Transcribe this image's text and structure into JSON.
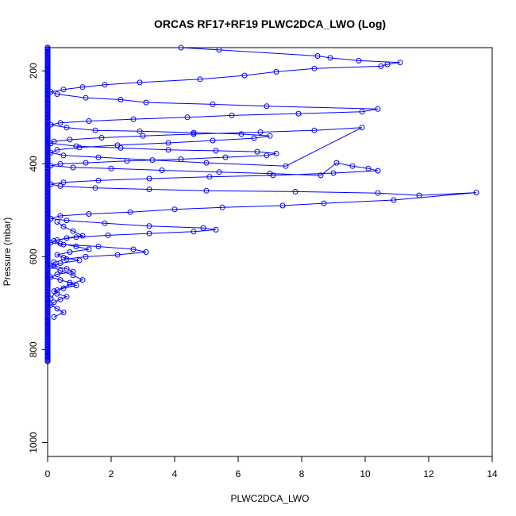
{
  "chart_data": {
    "type": "line",
    "title": "ORCAS RF17+RF19 PLWC2DCA_LWO (Log)",
    "xlabel": "PLWC2DCA_LWO",
    "ylabel": "Pressure (mbar)",
    "xlim": [
      0,
      14
    ],
    "ylim": [
      1030,
      150
    ],
    "y_inverted": true,
    "grid": false,
    "legend": "none",
    "x_ticks": [
      0,
      2,
      4,
      6,
      8,
      10,
      12,
      14
    ],
    "y_ticks": [
      200,
      400,
      600,
      800,
      1000
    ],
    "marker": "open-circle",
    "color": "#0000ff",
    "series": [
      {
        "x": [
          4.2,
          5.4,
          8.5,
          8.9,
          9.8,
          11.1,
          10.7,
          10.5,
          8.4,
          7.2,
          6.2,
          4.8,
          2.9,
          1.8,
          1.1,
          0.5,
          0.1,
          0.3,
          1.2,
          2.3,
          3.1,
          5.2,
          6.9,
          10.4,
          9.9,
          7.9,
          5.8,
          4.4,
          2.7,
          1.3,
          0.4,
          0.1,
          0.6,
          1.5,
          2.9,
          4.6,
          6.1,
          7.0,
          6.5,
          5.2,
          3.8,
          2.2,
          1.0,
          0.3,
          0.1,
          0.5,
          1.6,
          3.3,
          5.0,
          7.5,
          9.9,
          8.4,
          6.7,
          4.6,
          3.0,
          1.7,
          0.7,
          0.2,
          0.1,
          0.9,
          2.3,
          3.8,
          5.3,
          6.6,
          7.2,
          6.9,
          5.6,
          4.2,
          2.5,
          1.2,
          0.4,
          0.1,
          0.8,
          2.0,
          3.6,
          5.4,
          7.0,
          8.6,
          9.1,
          9.6,
          10.1,
          10.4,
          9.0,
          7.1,
          5.1,
          3.2,
          1.6,
          0.5,
          0.1,
          0.4,
          1.5,
          3.2,
          5.0,
          7.8,
          10.4,
          11.7,
          13.5,
          10.9,
          8.7,
          7.4,
          5.5,
          4.0,
          2.6,
          1.3,
          0.4,
          0.1,
          0.6,
          1.8,
          3.2,
          4.9,
          5.3,
          4.6,
          3.2,
          1.9,
          0.9,
          0.3,
          0.1,
          0.5,
          1.6,
          2.7,
          3.1,
          2.2,
          1.2,
          0.6,
          0.2,
          0.1,
          0.4,
          0.8,
          1.1,
          0.7,
          0.3,
          0.1
        ],
        "y": [
          150,
          155,
          168,
          172,
          178,
          182,
          186,
          190,
          195,
          202,
          210,
          218,
          225,
          230,
          235,
          240,
          245,
          250,
          258,
          262,
          268,
          272,
          276,
          282,
          288,
          292,
          296,
          300,
          304,
          308,
          312,
          316,
          322,
          328,
          330,
          333,
          336,
          340,
          345,
          350,
          355,
          360,
          365,
          370,
          376,
          382,
          386,
          392,
          398,
          405,
          322,
          328,
          332,
          336,
          340,
          344,
          348,
          352,
          356,
          362,
          366,
          370,
          372,
          374,
          378,
          382,
          386,
          390,
          394,
          398,
          400,
          404,
          408,
          410,
          414,
          418,
          421,
          425,
          398,
          405,
          410,
          415,
          420,
          425,
          428,
          432,
          436,
          440,
          444,
          448,
          452,
          455,
          458,
          460,
          463,
          468,
          462,
          478,
          485,
          490,
          494,
          498,
          504,
          508,
          512,
          518,
          522,
          528,
          534,
          538,
          542,
          546,
          550,
          554,
          558,
          564,
          570,
          574,
          578,
          584,
          590,
          596,
          600,
          605,
          612,
          620,
          630,
          640,
          650,
          660,
          672,
          690
        ]
      },
      {
        "x": [
          0.3,
          0.5,
          0.8,
          1.1,
          0.6,
          0.2,
          0.4,
          0.9,
          1.3,
          0.7,
          0.3,
          0.5,
          1.0,
          0.4,
          0.2,
          0.6,
          0.8,
          0.3,
          0.1,
          0.4,
          0.7,
          0.9,
          0.5,
          0.2,
          0.3,
          0.6,
          0.4,
          0.2,
          0.1,
          0.3,
          0.5,
          0.2
        ],
        "y": [
          525,
          535,
          545,
          555,
          560,
          566,
          572,
          578,
          584,
          590,
          596,
          602,
          608,
          614,
          620,
          626,
          632,
          638,
          644,
          650,
          656,
          662,
          668,
          674,
          680,
          686,
          692,
          698,
          704,
          712,
          720,
          730
        ]
      },
      {
        "x": [
          0.0,
          0.0,
          0.0,
          0.0,
          0.0,
          0.0,
          0.0,
          0.0,
          0.0,
          0.0,
          0.0,
          0.0,
          0.0,
          0.0,
          0.0,
          0.0,
          0.0,
          0.0
        ],
        "y": [
          150,
          200,
          250,
          300,
          350,
          400,
          450,
          500,
          550,
          600,
          650,
          700,
          740,
          760,
          780,
          800,
          815,
          825
        ]
      }
    ]
  }
}
